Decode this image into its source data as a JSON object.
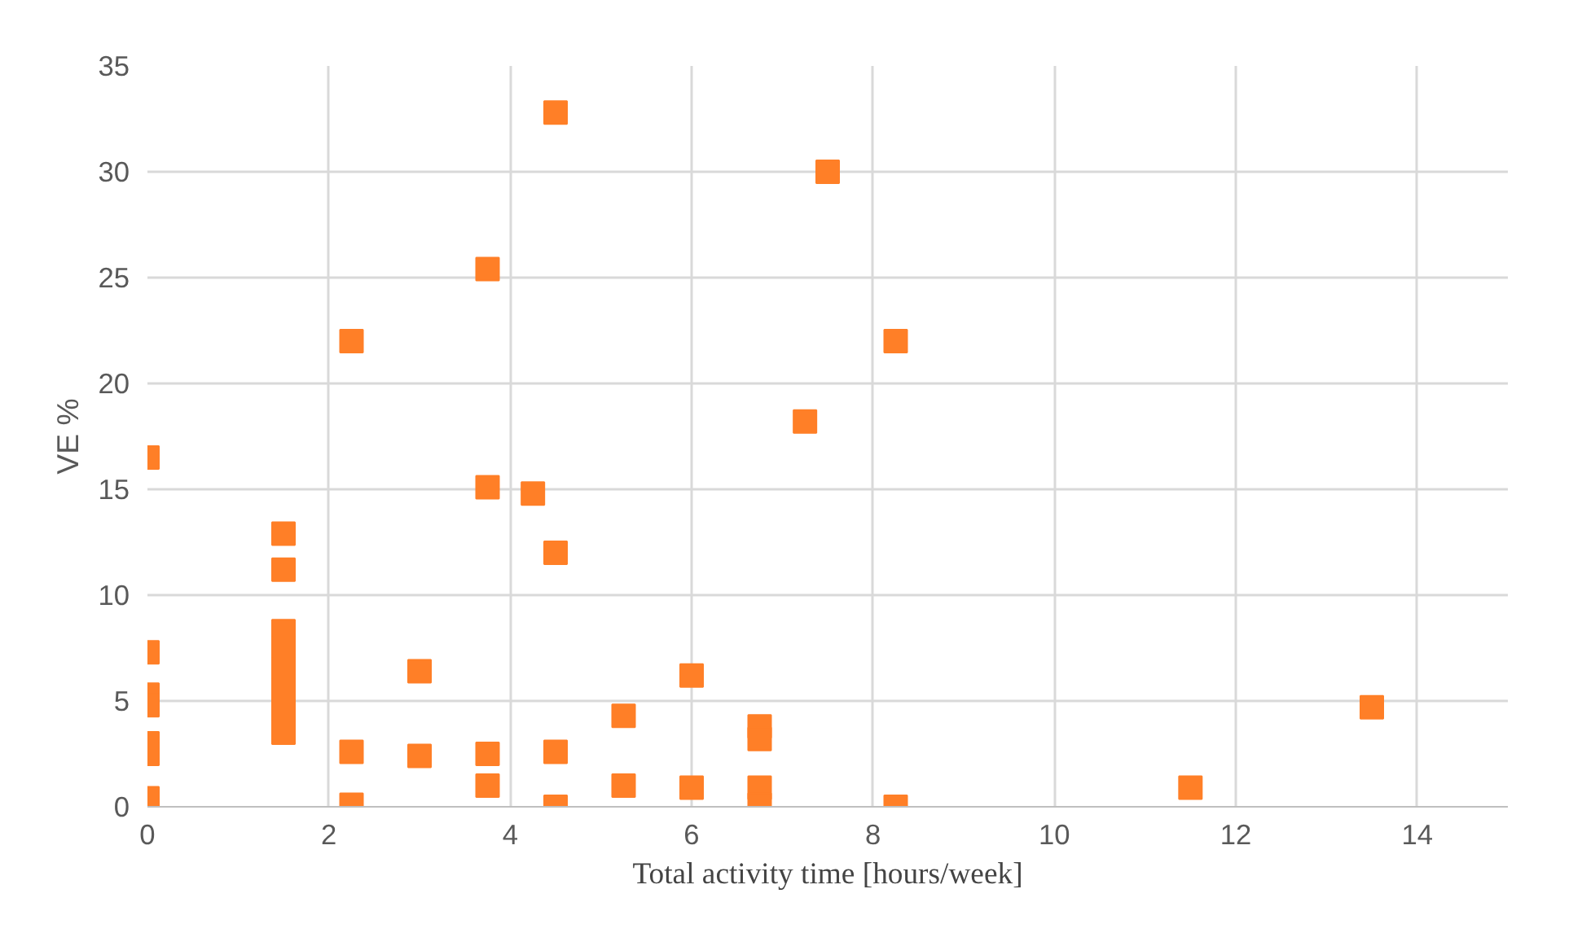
{
  "chart_data": {
    "type": "scatter",
    "xlabel": "Total activity time [hours/week]",
    "ylabel": "VE %",
    "x": [
      0,
      0,
      0,
      0,
      0,
      0,
      0,
      1.5,
      1.5,
      1.5,
      1.5,
      1.5,
      1.5,
      1.5,
      1.5,
      2.25,
      2.25,
      2.25,
      3,
      3,
      3.75,
      3.75,
      3.75,
      3.75,
      4.25,
      4.5,
      4.5,
      4.5,
      4.5,
      5.25,
      5.25,
      6,
      6,
      6.75,
      6.75,
      6.75,
      6.75,
      7.25,
      7.5,
      8.25,
      8.25,
      11.5,
      13.5
    ],
    "values": [
      16.5,
      7.3,
      5.3,
      4.8,
      3.0,
      2.5,
      0.4,
      12.9,
      11.2,
      8.3,
      7.5,
      6.5,
      5.5,
      4.5,
      3.5,
      22,
      2.6,
      0.1,
      6.4,
      2.4,
      25.4,
      15.1,
      2.5,
      1.0,
      14.8,
      32.8,
      12.0,
      2.6,
      0.0,
      4.3,
      1.0,
      6.2,
      0.9,
      3.8,
      3.2,
      0.9,
      0.1,
      18.2,
      30.0,
      22.0,
      0.0,
      0.9,
      4.7
    ],
    "color": "#ff7f27",
    "marker": "square",
    "xlim": [
      0,
      15
    ],
    "xticks": [
      0,
      2,
      4,
      6,
      8,
      10,
      12,
      14
    ],
    "ylim": [
      0,
      35
    ],
    "yticks": [
      0,
      5,
      10,
      15,
      20,
      25,
      30,
      35
    ],
    "grid": true
  }
}
